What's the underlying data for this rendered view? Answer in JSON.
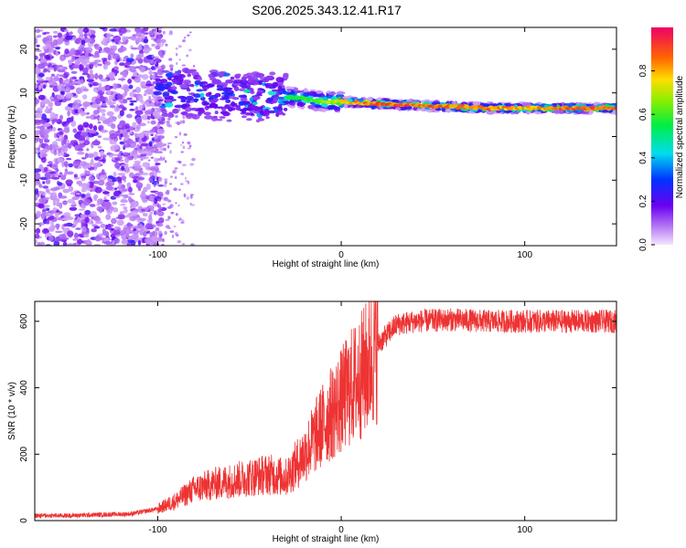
{
  "figure_title": "S206.2025.343.12.41.R17",
  "chart_data": [
    {
      "type": "heatmap",
      "title": "S206.2025.343.12.41.R17",
      "xlabel": "Height of straight line (km)",
      "ylabel": "Frequency (Hz)",
      "xlim": [
        -167,
        150
      ],
      "ylim": [
        -25,
        25
      ],
      "x_ticks": [
        -100,
        0,
        100
      ],
      "y_ticks": [
        -20,
        -10,
        0,
        10,
        20
      ],
      "colorbar": {
        "label": "Normalized spectral amplitude",
        "range": [
          0.0,
          1.0
        ],
        "ticks": [
          0.0,
          0.2,
          0.4,
          0.6,
          0.8
        ]
      },
      "ridge": {
        "description_points_x": [
          -100,
          -80,
          -60,
          -40,
          -25,
          -10,
          0,
          20,
          50,
          80,
          100,
          120,
          150
        ],
        "frequency_hz": [
          10,
          10,
          9,
          9,
          9,
          8,
          8,
          7.5,
          7,
          6.5,
          6.5,
          6.5,
          6.5
        ],
        "peak_amplitude": [
          0.3,
          0.35,
          0.4,
          0.45,
          0.6,
          0.7,
          0.8,
          0.95,
          0.95,
          0.9,
          0.85,
          0.95,
          0.95
        ]
      }
    },
    {
      "type": "line",
      "xlabel": "Height of straight line (km)",
      "ylabel": "SNR (10 * v/v)",
      "xlim": [
        -167,
        150
      ],
      "ylim": [
        0,
        660
      ],
      "x_ticks": [
        -100,
        0,
        100
      ],
      "y_ticks": [
        0,
        200,
        400,
        600
      ],
      "series": [
        {
          "name": "SNR",
          "color": "#ee3333",
          "x": [
            -167,
            -150,
            -130,
            -115,
            -100,
            -90,
            -80,
            -70,
            -60,
            -50,
            -40,
            -30,
            -20,
            -10,
            0,
            5,
            10,
            15,
            20,
            30,
            40,
            60,
            80,
            100,
            120,
            150
          ],
          "y": [
            15,
            15,
            18,
            20,
            35,
            60,
            95,
            110,
            120,
            130,
            140,
            130,
            200,
            290,
            360,
            400,
            430,
            470,
            530,
            590,
            600,
            605,
            600,
            600,
            600,
            600
          ]
        }
      ]
    }
  ]
}
